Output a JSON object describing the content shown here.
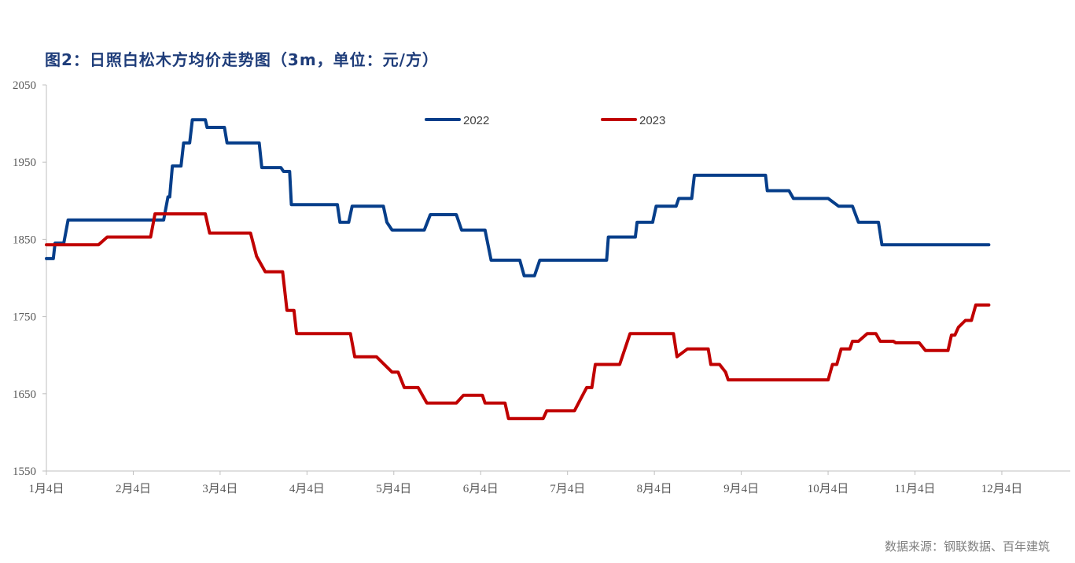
{
  "title": "图2：日照白松木方均价走势图（3m，单位：元/方）",
  "source": "数据来源：钢联数据、百年建筑",
  "chart_data": {
    "type": "line",
    "x_categories": [
      "1月4日",
      "2月4日",
      "3月4日",
      "4月4日",
      "5月4日",
      "6月4日",
      "7月4日",
      "8月4日",
      "9月4日",
      "10月4日",
      "11月4日",
      "12月4日"
    ],
    "ylim": [
      1550,
      2050
    ],
    "yticks": [
      1550,
      1650,
      1750,
      1850,
      1950,
      2050
    ],
    "grid": false,
    "legend_position": "top-center",
    "series": [
      {
        "name": "2022",
        "color": "#063e8a",
        "points": [
          [
            0,
            1825
          ],
          [
            0.08,
            1825
          ],
          [
            0.1,
            1845
          ],
          [
            0.2,
            1845
          ],
          [
            0.25,
            1875
          ],
          [
            1.3,
            1875
          ],
          [
            1.35,
            1875
          ],
          [
            1.4,
            1905
          ],
          [
            1.42,
            1905
          ],
          [
            1.45,
            1945
          ],
          [
            1.55,
            1945
          ],
          [
            1.58,
            1975
          ],
          [
            1.65,
            1975
          ],
          [
            1.68,
            2005
          ],
          [
            1.83,
            2005
          ],
          [
            1.85,
            1995
          ],
          [
            2.05,
            1995
          ],
          [
            2.08,
            1975
          ],
          [
            2.45,
            1975
          ],
          [
            2.48,
            1943
          ],
          [
            2.7,
            1943
          ],
          [
            2.73,
            1938
          ],
          [
            2.8,
            1938
          ],
          [
            2.82,
            1895
          ],
          [
            3.35,
            1895
          ],
          [
            3.38,
            1872
          ],
          [
            3.48,
            1872
          ],
          [
            3.52,
            1893
          ],
          [
            3.88,
            1893
          ],
          [
            3.92,
            1872
          ],
          [
            3.98,
            1862
          ],
          [
            4.35,
            1862
          ],
          [
            4.42,
            1882
          ],
          [
            4.72,
            1882
          ],
          [
            4.78,
            1862
          ],
          [
            5.05,
            1862
          ],
          [
            5.12,
            1823
          ],
          [
            5.45,
            1823
          ],
          [
            5.5,
            1803
          ],
          [
            5.62,
            1803
          ],
          [
            5.68,
            1823
          ],
          [
            6.45,
            1823
          ],
          [
            6.47,
            1853
          ],
          [
            6.78,
            1853
          ],
          [
            6.8,
            1872
          ],
          [
            6.98,
            1872
          ],
          [
            7.02,
            1893
          ],
          [
            7.25,
            1893
          ],
          [
            7.28,
            1903
          ],
          [
            7.43,
            1903
          ],
          [
            7.46,
            1933
          ],
          [
            8.28,
            1933
          ],
          [
            8.3,
            1913
          ],
          [
            8.55,
            1913
          ],
          [
            8.6,
            1903
          ],
          [
            9.0,
            1903
          ],
          [
            9.12,
            1893
          ],
          [
            9.28,
            1893
          ],
          [
            9.35,
            1872
          ],
          [
            9.58,
            1872
          ],
          [
            9.62,
            1843
          ],
          [
            10.85,
            1843
          ]
        ]
      },
      {
        "name": "2023",
        "color": "#c00000",
        "points": [
          [
            0,
            1843
          ],
          [
            0.6,
            1843
          ],
          [
            0.7,
            1853
          ],
          [
            1.2,
            1853
          ],
          [
            1.25,
            1883
          ],
          [
            1.83,
            1883
          ],
          [
            1.88,
            1858
          ],
          [
            2.35,
            1858
          ],
          [
            2.42,
            1828
          ],
          [
            2.52,
            1808
          ],
          [
            2.72,
            1808
          ],
          [
            2.77,
            1758
          ],
          [
            2.85,
            1758
          ],
          [
            2.88,
            1728
          ],
          [
            3.5,
            1728
          ],
          [
            3.55,
            1698
          ],
          [
            3.8,
            1698
          ],
          [
            3.98,
            1678
          ],
          [
            4.05,
            1678
          ],
          [
            4.12,
            1658
          ],
          [
            4.28,
            1658
          ],
          [
            4.38,
            1638
          ],
          [
            4.72,
            1638
          ],
          [
            4.8,
            1648
          ],
          [
            5.02,
            1648
          ],
          [
            5.05,
            1638
          ],
          [
            5.28,
            1638
          ],
          [
            5.32,
            1618
          ],
          [
            5.72,
            1618
          ],
          [
            5.76,
            1628
          ],
          [
            6.08,
            1628
          ],
          [
            6.22,
            1658
          ],
          [
            6.28,
            1658
          ],
          [
            6.32,
            1688
          ],
          [
            6.6,
            1688
          ],
          [
            6.72,
            1728
          ],
          [
            7.22,
            1728
          ],
          [
            7.26,
            1698
          ],
          [
            7.38,
            1708
          ],
          [
            7.62,
            1708
          ],
          [
            7.65,
            1688
          ],
          [
            7.75,
            1688
          ],
          [
            7.82,
            1678
          ],
          [
            7.85,
            1668
          ],
          [
            9.0,
            1668
          ],
          [
            9.05,
            1688
          ],
          [
            9.1,
            1688
          ],
          [
            9.15,
            1708
          ],
          [
            9.25,
            1708
          ],
          [
            9.28,
            1718
          ],
          [
            9.35,
            1718
          ],
          [
            9.45,
            1728
          ],
          [
            9.55,
            1728
          ],
          [
            9.6,
            1718
          ],
          [
            9.75,
            1718
          ],
          [
            9.78,
            1716
          ],
          [
            10.05,
            1716
          ],
          [
            10.12,
            1706
          ],
          [
            10.38,
            1706
          ],
          [
            10.42,
            1726
          ],
          [
            10.46,
            1726
          ],
          [
            10.5,
            1736
          ],
          [
            10.58,
            1745
          ],
          [
            10.65,
            1745
          ],
          [
            10.7,
            1765
          ],
          [
            10.85,
            1765
          ]
        ]
      }
    ]
  }
}
